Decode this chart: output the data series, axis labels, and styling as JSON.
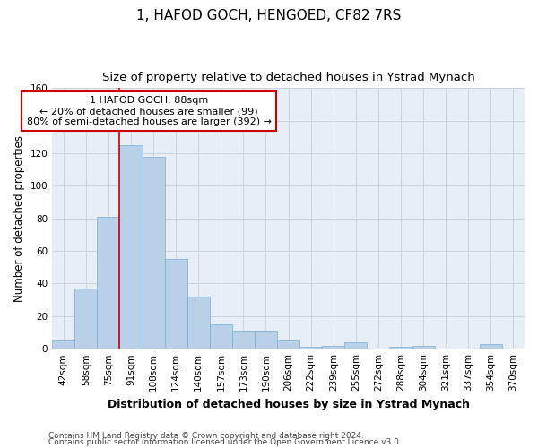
{
  "title": "1, HAFOD GOCH, HENGOED, CF82 7RS",
  "subtitle": "Size of property relative to detached houses in Ystrad Mynach",
  "xlabel": "Distribution of detached houses by size in Ystrad Mynach",
  "ylabel": "Number of detached properties",
  "footer1": "Contains HM Land Registry data © Crown copyright and database right 2024.",
  "footer2": "Contains public sector information licensed under the Open Government Licence v3.0.",
  "categories": [
    "42sqm",
    "58sqm",
    "75sqm",
    "91sqm",
    "108sqm",
    "124sqm",
    "140sqm",
    "157sqm",
    "173sqm",
    "190sqm",
    "206sqm",
    "222sqm",
    "239sqm",
    "255sqm",
    "272sqm",
    "288sqm",
    "304sqm",
    "321sqm",
    "337sqm",
    "354sqm",
    "370sqm"
  ],
  "values": [
    5,
    37,
    81,
    125,
    118,
    55,
    32,
    15,
    11,
    11,
    5,
    1,
    2,
    4,
    0,
    1,
    2,
    0,
    0,
    3,
    0
  ],
  "bar_color": "#b8d0e8",
  "bar_edge_color": "#7aafd4",
  "vline_x": 2.5,
  "vline_color": "#cc0000",
  "annotation_text": "1 HAFOD GOCH: 88sqm\n← 20% of detached houses are smaller (99)\n80% of semi-detached houses are larger (392) →",
  "annotation_box_color": "#ffffff",
  "annotation_box_edge": "#cc0000",
  "ylim": [
    0,
    160
  ],
  "yticks": [
    0,
    20,
    40,
    60,
    80,
    100,
    120,
    140,
    160
  ],
  "grid_color": "#c8d4e0",
  "bg_color": "#e8eef5",
  "title_fontsize": 11,
  "subtitle_fontsize": 9.5,
  "xlabel_fontsize": 9,
  "ylabel_fontsize": 8.5,
  "tick_fontsize": 7.5,
  "annotation_fontsize": 8,
  "footer_fontsize": 6.5
}
